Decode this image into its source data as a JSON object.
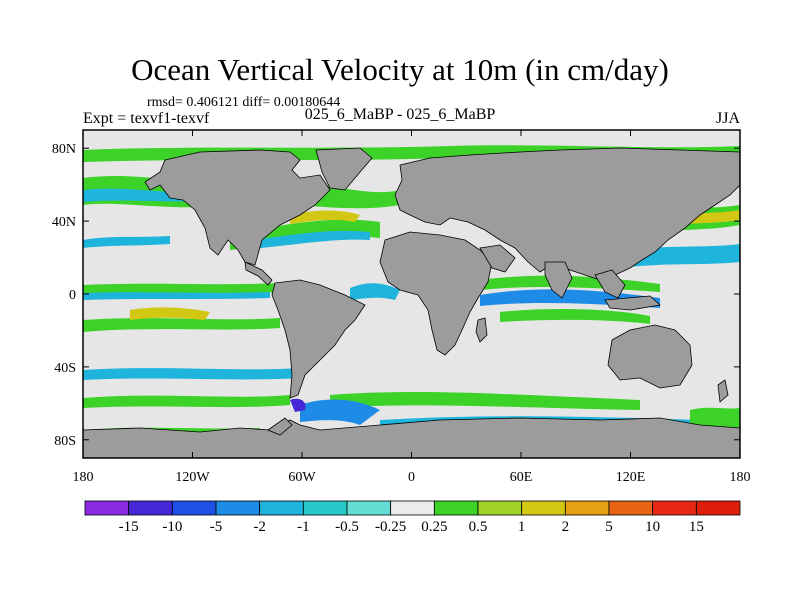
{
  "title": "Ocean Vertical Velocity at 10m (in cm/day)",
  "stats": "rmsd= 0.406121 diff= 0.00180644",
  "expt": "Expt = texvf1-texvf",
  "center_label": "025_6_MaBP - 025_6_MaBP",
  "season": "JJA",
  "map": {
    "lon_ticks": [
      "180",
      "120W",
      "60W",
      "0",
      "60E",
      "120E",
      "180"
    ],
    "lat_ticks": [
      "80N",
      "40N",
      "0",
      "40S",
      "80S"
    ],
    "land_color": "#9c9c9c",
    "ocean_color": "#e6e6e6"
  },
  "colorbar": {
    "labels": [
      "-15",
      "-10",
      "-5",
      "-2",
      "-1",
      "-0.5",
      "-0.25",
      "0.25",
      "0.5",
      "1",
      "2",
      "5",
      "10",
      "15"
    ],
    "colors": [
      "#8a2be2",
      "#4628d6",
      "#1e50e6",
      "#1e8ce6",
      "#1eb4dc",
      "#28c8c8",
      "#64dcd2",
      "#ececec",
      "#3cd228",
      "#a0d228",
      "#d2c814",
      "#e6a014",
      "#e66414",
      "#e62814",
      "#dc1e0a"
    ]
  }
}
